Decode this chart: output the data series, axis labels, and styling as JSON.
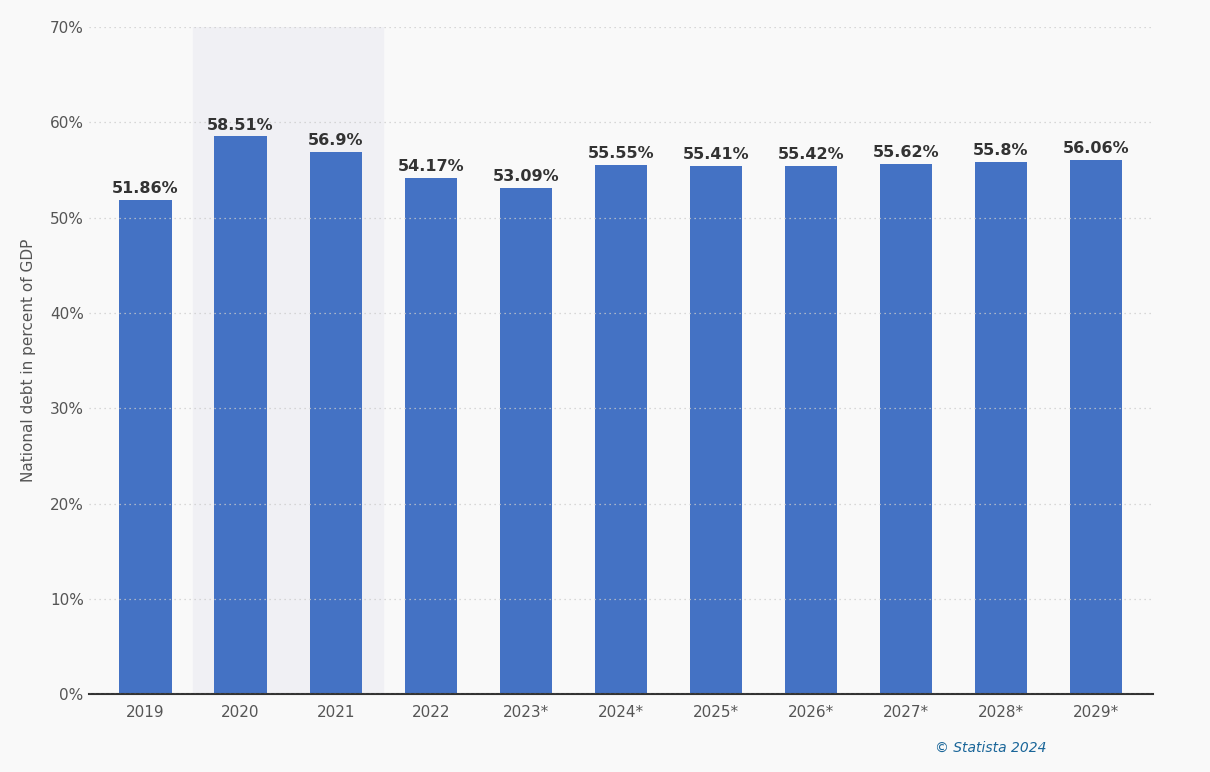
{
  "categories": [
    "2019",
    "2020",
    "2021",
    "2022",
    "2023*",
    "2024*",
    "2025*",
    "2026*",
    "2027*",
    "2028*",
    "2029*"
  ],
  "values": [
    51.86,
    58.51,
    56.9,
    54.17,
    53.09,
    55.55,
    55.41,
    55.42,
    55.62,
    55.8,
    56.06
  ],
  "labels": [
    "51.86%",
    "58.51%",
    "56.9%",
    "54.17%",
    "53.09%",
    "55.55%",
    "55.41%",
    "55.42%",
    "55.62%",
    "55.8%",
    "56.06%"
  ],
  "bar_color": "#4472c4",
  "highlight_bars": [
    1,
    2
  ],
  "highlight_color": "#f0f0f4",
  "ylabel": "National debt in percent of GDP",
  "ylim": [
    0,
    70
  ],
  "yticks": [
    0,
    10,
    20,
    30,
    40,
    50,
    60,
    70
  ],
  "ytick_labels": [
    "0%",
    "10%",
    "20%",
    "30%",
    "40%",
    "50%",
    "60%",
    "70%"
  ],
  "grid_color": "#cccccc",
  "background_color": "#f9f9f9",
  "plot_bg_color": "#f9f9f9",
  "bar_label_fontsize": 11.5,
  "axis_label_fontsize": 11,
  "tick_fontsize": 11,
  "statista_text": "© Statista 2024",
  "statista_color": "#1a6699",
  "bar_width": 0.55
}
